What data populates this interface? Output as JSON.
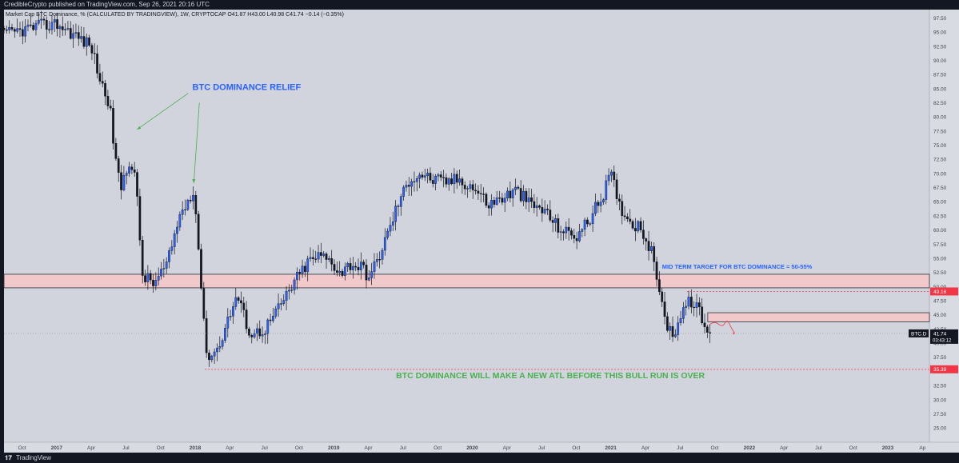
{
  "header": {
    "publisher_line": "CredibleCrypto published on TradingView.com, Sep 26, 2021 20:16 UTC"
  },
  "footer": {
    "brand": "TradingView",
    "logo_icon": "tradingview-logo-icon"
  },
  "chart_data": {
    "type": "candlestick",
    "legend": "Market Cap BTC Dominance, % (CALCULATED BY TRADINGVIEW), 1W, CRYPTOCAP O41.87 H43.00 L40.98 C41.74 −0.14 (−0.35%)",
    "y_ticks": [
      "97.50",
      "95.00",
      "92.50",
      "90.00",
      "87.50",
      "85.00",
      "82.50",
      "80.00",
      "77.50",
      "75.00",
      "72.50",
      "70.00",
      "67.50",
      "65.00",
      "62.50",
      "60.00",
      "57.50",
      "55.00",
      "52.50",
      "50.00",
      "47.50",
      "45.00",
      "42.50",
      "40.00",
      "37.50",
      "35.00",
      "32.50",
      "30.00",
      "27.50",
      "25.00"
    ],
    "ylim": [
      22.5,
      99.0
    ],
    "x_ticks": [
      "Oct",
      "2017",
      "Apr",
      "Jul",
      "Oct",
      "2018",
      "Apr",
      "Jul",
      "Oct",
      "2019",
      "Apr",
      "Jul",
      "Oct",
      "2020",
      "Apr",
      "Jul",
      "Oct",
      "2021",
      "Apr",
      "Jul",
      "Oct",
      "2022",
      "Apr",
      "Jul",
      "Oct",
      "2023",
      "Ap"
    ],
    "x_tick_positions": [
      2016.75,
      2017.0,
      2017.25,
      2017.5,
      2017.75,
      2018.0,
      2018.25,
      2018.5,
      2018.75,
      2019.0,
      2019.25,
      2019.5,
      2019.75,
      2020.0,
      2020.25,
      2020.5,
      2020.75,
      2021.0,
      2021.25,
      2021.5,
      2021.75,
      2022.0,
      2022.25,
      2022.5,
      2022.75,
      2023.0,
      2023.25
    ],
    "xlim": [
      2016.62,
      2023.3
    ],
    "anchors": [
      [
        2016.62,
        94.5
      ],
      [
        2016.85,
        96.0
      ],
      [
        2017.0,
        96.5
      ],
      [
        2017.1,
        95.0
      ],
      [
        2017.25,
        92.5
      ],
      [
        2017.32,
        86.0
      ],
      [
        2017.38,
        82.5
      ],
      [
        2017.42,
        73.5
      ],
      [
        2017.46,
        67.0
      ],
      [
        2017.52,
        72.5
      ],
      [
        2017.57,
        69.0
      ],
      [
        2017.62,
        52.0
      ],
      [
        2017.7,
        50.5
      ],
      [
        2017.8,
        54.0
      ],
      [
        2017.88,
        62.0
      ],
      [
        2017.95,
        65.5
      ],
      [
        2017.99,
        67.5
      ],
      [
        2018.03,
        55.0
      ],
      [
        2018.07,
        40.5
      ],
      [
        2018.1,
        37.5
      ],
      [
        2018.16,
        39.0
      ],
      [
        2018.25,
        45.0
      ],
      [
        2018.3,
        48.5
      ],
      [
        2018.35,
        45.0
      ],
      [
        2018.4,
        41.5
      ],
      [
        2018.5,
        42.5
      ],
      [
        2018.6,
        46.0
      ],
      [
        2018.72,
        51.0
      ],
      [
        2018.82,
        54.5
      ],
      [
        2018.9,
        55.5
      ],
      [
        2018.98,
        54.5
      ],
      [
        2019.05,
        52.5
      ],
      [
        2019.12,
        54.0
      ],
      [
        2019.2,
        53.5
      ],
      [
        2019.26,
        51.5
      ],
      [
        2019.32,
        55.0
      ],
      [
        2019.4,
        60.0
      ],
      [
        2019.46,
        64.5
      ],
      [
        2019.55,
        69.0
      ],
      [
        2019.63,
        70.0
      ],
      [
        2019.7,
        69.0
      ],
      [
        2019.8,
        68.5
      ],
      [
        2019.9,
        69.0
      ],
      [
        2019.98,
        68.0
      ],
      [
        2020.05,
        66.5
      ],
      [
        2020.12,
        64.5
      ],
      [
        2020.2,
        65.5
      ],
      [
        2020.32,
        67.0
      ],
      [
        2020.42,
        64.5
      ],
      [
        2020.52,
        63.5
      ],
      [
        2020.6,
        61.0
      ],
      [
        2020.68,
        59.5
      ],
      [
        2020.76,
        59.0
      ],
      [
        2020.86,
        62.5
      ],
      [
        2020.93,
        65.5
      ],
      [
        2021.0,
        70.0
      ],
      [
        2021.06,
        64.5
      ],
      [
        2021.14,
        61.5
      ],
      [
        2021.22,
        60.5
      ],
      [
        2021.3,
        55.5
      ],
      [
        2021.35,
        50.0
      ],
      [
        2021.38,
        44.5
      ],
      [
        2021.45,
        41.5
      ],
      [
        2021.52,
        46.0
      ],
      [
        2021.58,
        47.5
      ],
      [
        2021.64,
        45.5
      ],
      [
        2021.69,
        42.0
      ],
      [
        2021.73,
        41.74
      ]
    ],
    "zones": [
      {
        "from": 49.8,
        "to": 52.2,
        "x_start": 2016.62,
        "x_end": 2023.3,
        "fill": "#f2c9cb",
        "stroke": "#2a2e39"
      },
      {
        "from": 43.8,
        "to": 45.4,
        "x_start": 2021.7,
        "x_end": 2023.3,
        "fill": "#f2c9cb",
        "stroke": "#2a2e39"
      }
    ],
    "levels": [
      {
        "value": 49.16,
        "label": "49.16",
        "x_start": 2021.55,
        "color": "#f23645"
      },
      {
        "value": 35.39,
        "label": "35.39",
        "x_start": 2018.07,
        "color": "#f23645"
      },
      {
        "value": 41.74,
        "label": "41.74",
        "x_start": 2016.62,
        "color": "#9598a1",
        "dotted": true
      }
    ],
    "price_tag": {
      "symbol": "BTC.D",
      "value": "41.74",
      "countdown": "03:43:12"
    },
    "annotations": [
      {
        "text": "BTC DOMINANCE RELIEF",
        "x": 2017.98,
        "y": 84.8,
        "color": "#2962ff",
        "size": 11
      },
      {
        "text": "MID TERM TARGET FOR BTC DOMINANCE = 50-55%",
        "x": 2021.37,
        "y": 53.2,
        "color": "#2962ff",
        "size": 7.5
      },
      {
        "text": "BTC DOMINANCE WILL MAKE A NEW ATL BEFORE THIS BULL RUN IS OVER",
        "x": 2019.45,
        "y": 33.8,
        "color": "#4caf50",
        "size": 10.5
      }
    ],
    "colors": {
      "background": "#d1d4dc",
      "up": "#2962ff",
      "down": "#131722",
      "arrow": "#4caf50",
      "path": "#f23645"
    }
  }
}
